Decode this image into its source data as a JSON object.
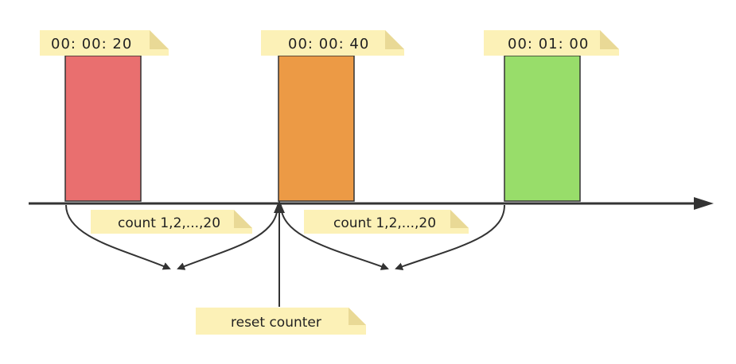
{
  "colors": {
    "block_red": "#e96f6f",
    "block_orange": "#ec9a45",
    "block_green": "#98dd6a",
    "note_fill": "#fcf1b7",
    "note_fold": "#e9d996",
    "axis": "#333333"
  },
  "timestamps": [
    "00:  00:  20",
    "00:  00:  40",
    "00:  01:  00"
  ],
  "count_labels": [
    "count 1,2,...,20",
    "count 1,2,...,20"
  ],
  "reset_label": "reset counter"
}
